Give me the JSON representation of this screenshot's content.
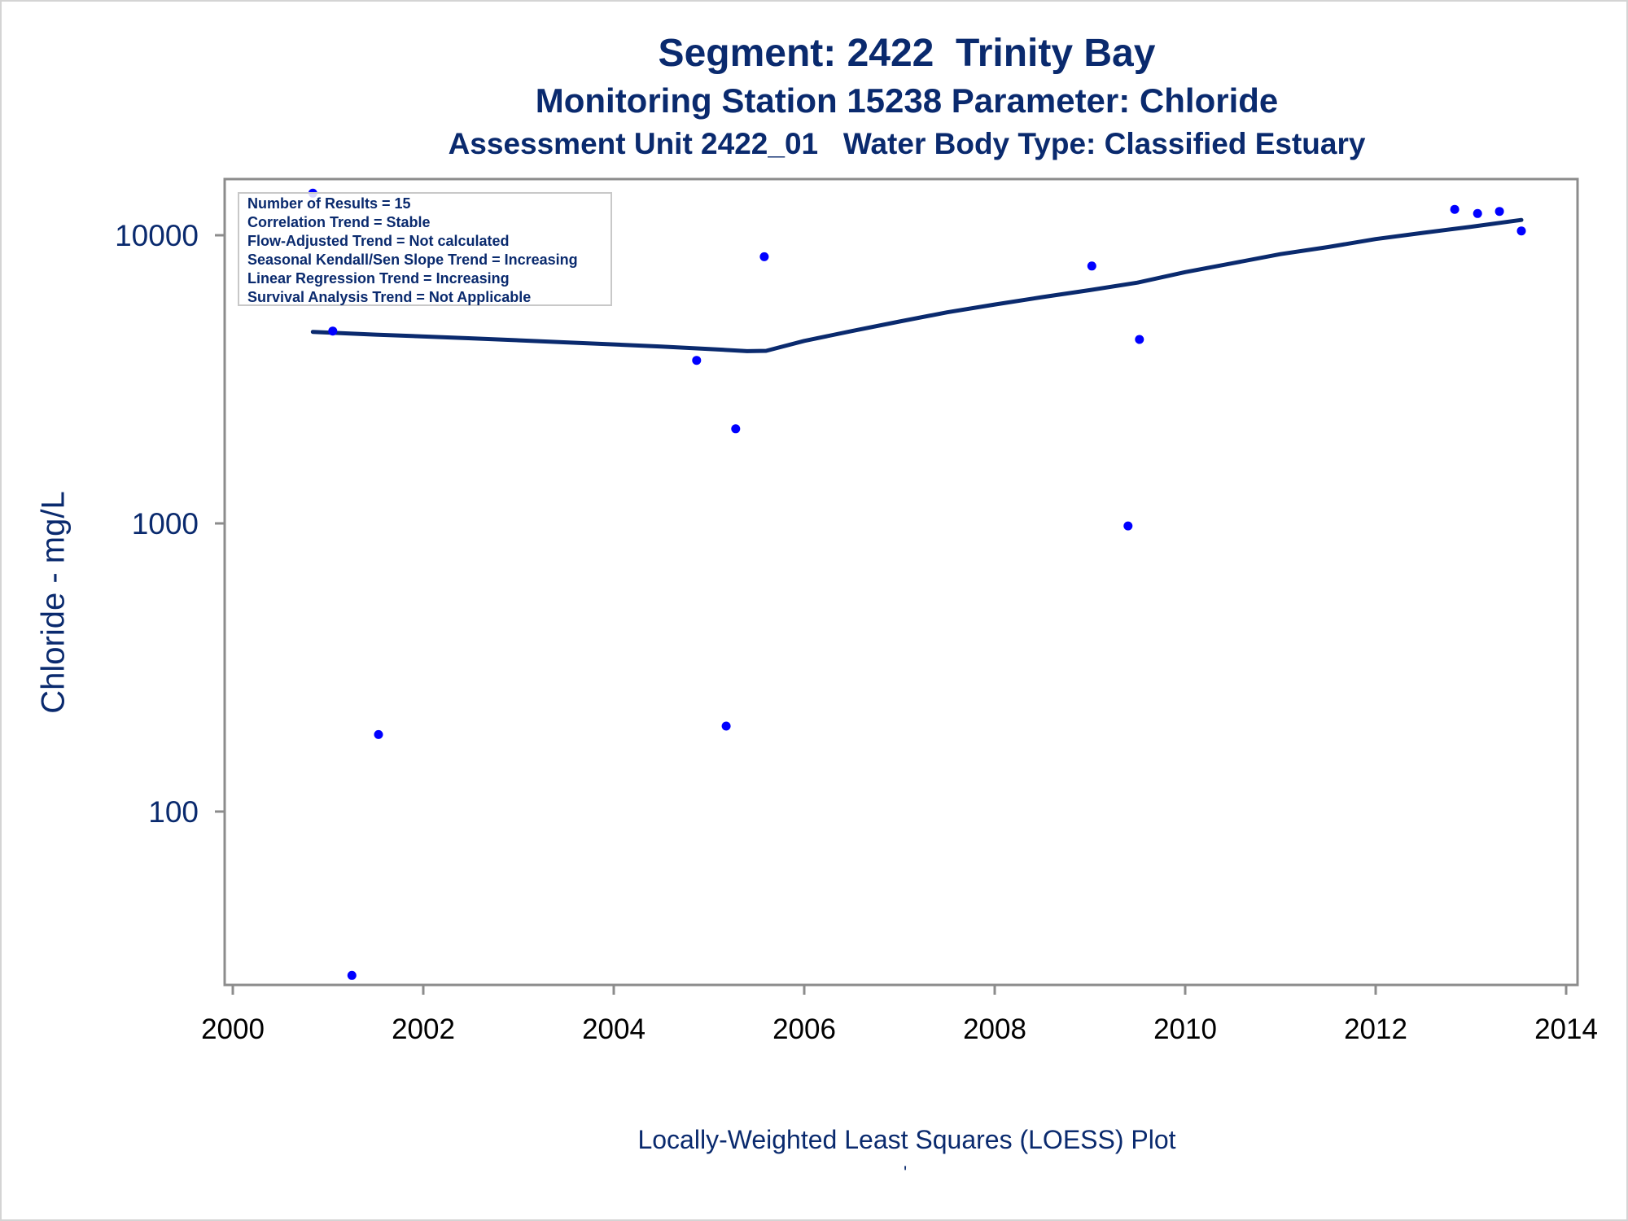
{
  "titles": {
    "line1": "Segment: 2422  Trinity Bay",
    "line2": "Monitoring Station 15238 Parameter: Chloride",
    "line3": "Assessment Unit 2422_01   Water Body Type: Classified Estuary"
  },
  "stats_box": [
    "Number of Results = 15",
    "Correlation Trend = Stable",
    "Flow-Adjusted Trend = Not calculated",
    "Seasonal Kendall/Sen Slope Trend = Increasing",
    "Linear Regression Trend = Increasing",
    "Survival Analysis Trend = Not Applicable"
  ],
  "footnote": "Locally-Weighted Least Squares (LOESS) Plot",
  "footnote_mark": "'",
  "colors": {
    "text": "#0a2a6e",
    "points": "#0000ff",
    "line": "#0a2a6e",
    "axis": "#8c8c8c"
  },
  "chart_data": {
    "type": "scatter",
    "title": "",
    "xlabel": "",
    "ylabel": "Chloride - mg/L",
    "xlim": [
      2000,
      2014
    ],
    "ylim": [
      30,
      14500
    ],
    "y_scale": "log",
    "x_ticks": [
      2000,
      2002,
      2004,
      2006,
      2008,
      2010,
      2012,
      2014
    ],
    "x_tick_labels": [
      "2000",
      "2002",
      "2004",
      "2006",
      "2008",
      "2010",
      "2012",
      "2014"
    ],
    "y_ticks": [
      100,
      1000,
      10000
    ],
    "y_tick_labels": [
      "100",
      "1000",
      "10000"
    ],
    "grid": false,
    "legend": "top-left",
    "series": [
      {
        "kind": "points",
        "x": [
          2000.84,
          2001.05,
          2001.25,
          2001.53,
          2004.87,
          2005.18,
          2005.28,
          2005.58,
          2009.02,
          2009.4,
          2009.52,
          2012.83,
          2013.07,
          2013.3,
          2013.53
        ],
        "y": [
          14000,
          4650,
          27,
          185,
          3680,
          198,
          2130,
          8420,
          7820,
          980,
          4350,
          12300,
          11900,
          12100,
          10350
        ]
      },
      {
        "kind": "loess",
        "x": [
          2000.84,
          2001.5,
          2002.5,
          2003.5,
          2004.5,
          2005.0,
          2005.4,
          2005.6,
          2006.0,
          2006.5,
          2007.0,
          2007.5,
          2008.0,
          2008.5,
          2009.0,
          2009.5,
          2010.0,
          2010.5,
          2011.0,
          2011.5,
          2012.0,
          2012.5,
          2013.0,
          2013.53
        ],
        "y": [
          4620,
          4520,
          4390,
          4250,
          4110,
          4030,
          3960,
          3970,
          4300,
          4650,
          5020,
          5400,
          5750,
          6100,
          6450,
          6850,
          7450,
          8000,
          8600,
          9100,
          9700,
          10200,
          10700,
          11300
        ]
      }
    ]
  }
}
